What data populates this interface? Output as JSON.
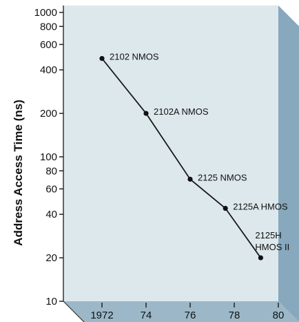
{
  "chart_data": {
    "type": "line",
    "title": "",
    "xlabel": "",
    "ylabel": "Address Access Time (ns)",
    "y_scale": "log",
    "ylim": [
      10,
      1000
    ],
    "xlim": [
      1972,
      1980
    ],
    "x_ticks": [
      {
        "value": 1972,
        "label": "1972"
      },
      {
        "value": 1974,
        "label": "74"
      },
      {
        "value": 1976,
        "label": "76"
      },
      {
        "value": 1978,
        "label": "78"
      },
      {
        "value": 1980,
        "label": "80"
      }
    ],
    "y_ticks": [
      {
        "value": 1000,
        "label": "1000"
      },
      {
        "value": 800,
        "label": "800"
      },
      {
        "value": 600,
        "label": "600"
      },
      {
        "value": 400,
        "label": "400"
      },
      {
        "value": 200,
        "label": "200"
      },
      {
        "value": 100,
        "label": "100"
      },
      {
        "value": 80,
        "label": "80"
      },
      {
        "value": 60,
        "label": "60"
      },
      {
        "value": 40,
        "label": "40"
      },
      {
        "value": 20,
        "label": "20"
      },
      {
        "value": 10,
        "label": "10"
      }
    ],
    "points": [
      {
        "x": 1972,
        "y": 480,
        "label": [
          "2102 NMOS"
        ]
      },
      {
        "x": 1974,
        "y": 200,
        "label": [
          "2102A NMOS"
        ]
      },
      {
        "x": 1976,
        "y": 70,
        "label": [
          "2125 NMOS"
        ]
      },
      {
        "x": 1977.6,
        "y": 44,
        "label": [
          "2125A HMOS"
        ]
      },
      {
        "x": 1979.2,
        "y": 20,
        "label": [
          "2125H",
          "HMOS II"
        ]
      }
    ],
    "grid": false,
    "colors": {
      "plot_bg": "#dde8ec",
      "side_face": "#87a8bd",
      "floor_face": "#9cb8c8",
      "line": "#1a1a1a",
      "marker": "#111111"
    }
  }
}
